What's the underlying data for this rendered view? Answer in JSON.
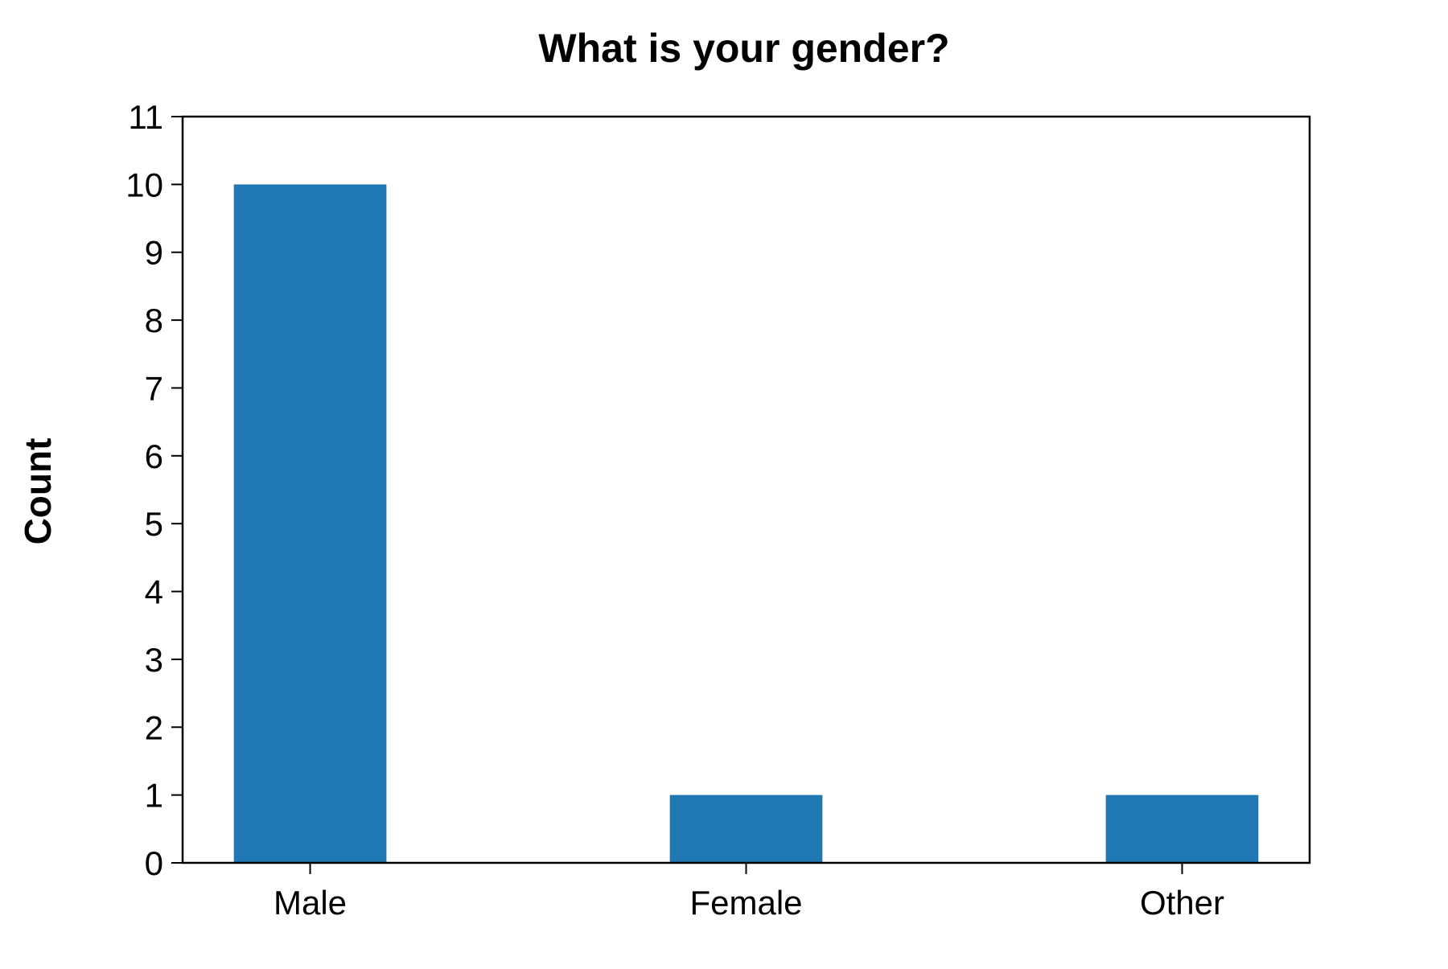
{
  "chart_data": {
    "type": "bar",
    "title": "What is your gender?",
    "xlabel": "",
    "ylabel": "Count",
    "categories": [
      "Male",
      "Female",
      "Other"
    ],
    "values": [
      10,
      1,
      1
    ],
    "ylim": [
      0,
      11
    ],
    "yticks": [
      "0",
      "1",
      "2",
      "3",
      "4",
      "5",
      "6",
      "7",
      "8",
      "9",
      "10",
      "11"
    ],
    "grid": false,
    "legend": "none",
    "bar_color": "#1f77b4"
  }
}
